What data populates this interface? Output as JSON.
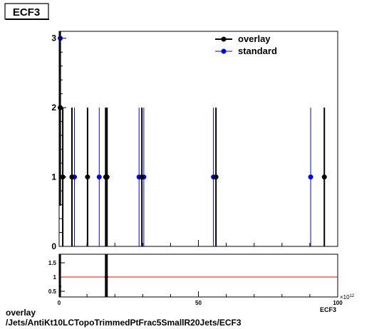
{
  "title_box": "ECF3",
  "caption": {
    "line1": "overlay",
    "line2": "/Jets/AntiKt10LCTopoTrimmedPtFrac5SmallR20Jets/ECF3"
  },
  "colors": {
    "overlay": "#000000",
    "standard": "#0000ff",
    "ratio_line": "#ff0000"
  },
  "chart_data": [
    {
      "type": "scatter",
      "xlim": [
        0,
        100
      ],
      "ylim": [
        0,
        3.1
      ],
      "yticks": [
        "0",
        "1",
        "2",
        "3"
      ],
      "legend": {
        "position": "top-right",
        "entries": [
          "overlay",
          "standard"
        ]
      },
      "grid": false,
      "series": [
        {
          "name": "overlay",
          "points": [
            {
              "x": 0.4,
              "y": 2
            },
            {
              "x": 1.3,
              "y": 1
            },
            {
              "x": 4.6,
              "y": 1
            },
            {
              "x": 10.2,
              "y": 1
            },
            {
              "x": 16.7,
              "y": 1
            },
            {
              "x": 17.2,
              "y": 1
            },
            {
              "x": 29.7,
              "y": 1
            },
            {
              "x": 56.3,
              "y": 1
            },
            {
              "x": 95.2,
              "y": 1
            }
          ]
        },
        {
          "name": "standard",
          "points": [
            {
              "x": 0.4,
              "y": 3
            },
            {
              "x": 5.5,
              "y": 1
            },
            {
              "x": 14.4,
              "y": 1
            },
            {
              "x": 28.7,
              "y": 1
            },
            {
              "x": 30.4,
              "y": 1
            },
            {
              "x": 55.4,
              "y": 1
            },
            {
              "x": 90.3,
              "y": 1
            }
          ]
        }
      ]
    },
    {
      "type": "line",
      "xlim": [
        0,
        100
      ],
      "ylim": [
        0.3,
        1.8
      ],
      "xticks": [
        "0",
        "50",
        "100"
      ],
      "yticks": [
        "0.5",
        "1",
        "1.5"
      ],
      "x_exponent_label": "×10",
      "x_exponent_power": "12",
      "xlabel": "ECF3",
      "reference_line": 1,
      "ratio_markers": [
        {
          "x": 0.4,
          "y": 0.67
        },
        {
          "x": 16.7,
          "y": 1.0
        },
        {
          "x": 17.2,
          "y": 1.0
        }
      ]
    }
  ]
}
